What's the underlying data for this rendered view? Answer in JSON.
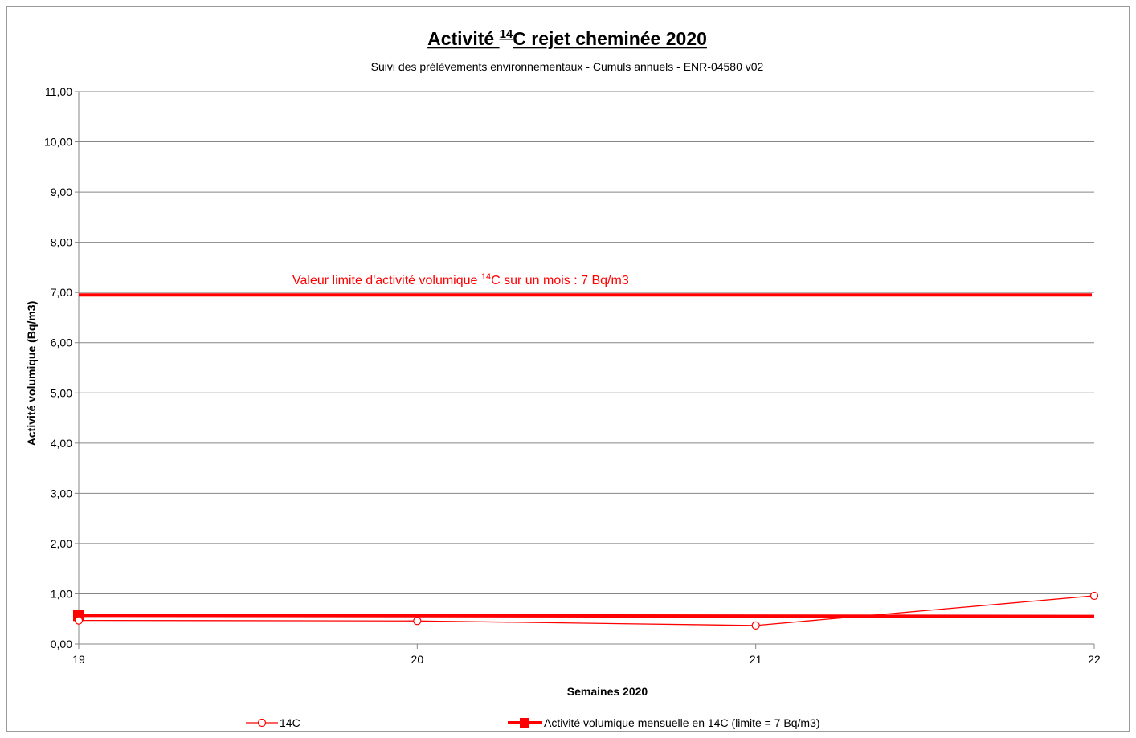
{
  "chart_data": {
    "type": "line",
    "title_prefix": "Activité ",
    "title_sup": "14",
    "title_suffix": "C rejet cheminée 2020",
    "subtitle": "Suivi des prélèvements environnementaux - Cumuls annuels - ENR-04580 v02",
    "xlabel": "Semaines 2020",
    "ylabel": "Activité volumique (Bq/m3)",
    "x": [
      19,
      20,
      21,
      22
    ],
    "xlim": [
      19,
      22
    ],
    "ylim": [
      0,
      11
    ],
    "y_ticks": [
      "0,00",
      "1,00",
      "2,00",
      "3,00",
      "4,00",
      "5,00",
      "6,00",
      "7,00",
      "8,00",
      "9,00",
      "10,00",
      "11,00"
    ],
    "x_ticks": [
      "19",
      "20",
      "21",
      "22"
    ],
    "grid": true,
    "legend_position": "bottom",
    "series": [
      {
        "name": "14C",
        "x": [
          19,
          20,
          21,
          22
        ],
        "values": [
          0.47,
          0.46,
          0.37,
          0.96
        ],
        "color": "#ff0000",
        "marker": "circle"
      },
      {
        "name": "Activité  volumique mensuelle en 14C  (limite = 7 Bq/m3)",
        "x": [
          19,
          22
        ],
        "values": [
          0.57,
          0.55
        ],
        "color": "#ff0000",
        "marker": "square"
      }
    ],
    "limit_line": {
      "value": 6.95,
      "color": "#ff0000"
    },
    "annotation": {
      "prefix": "Valeur limite d'activité volumique ",
      "sup": "14",
      "suffix": "C sur un mois : 7 Bq/m3"
    }
  }
}
